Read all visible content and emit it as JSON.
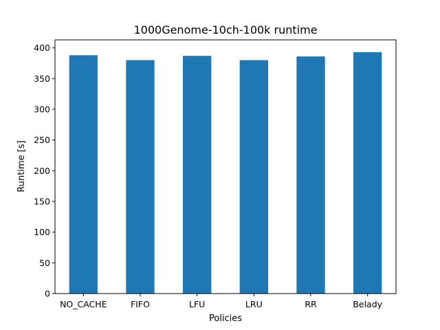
{
  "chart_data": {
    "type": "bar",
    "title": "1000Genome-10ch-100k runtime",
    "xlabel": "Policies",
    "ylabel": "Runtime [s]",
    "categories": [
      "NO_CACHE",
      "FIFO",
      "LFU",
      "LRU",
      "RR",
      "Belady"
    ],
    "values": [
      388,
      380,
      387,
      380,
      386,
      393
    ],
    "ylim": [
      0,
      413
    ],
    "yticks": [
      0,
      50,
      100,
      150,
      200,
      250,
      300,
      350,
      400
    ],
    "grid": false,
    "legend": "none",
    "bar_color": "#1f77b4"
  }
}
